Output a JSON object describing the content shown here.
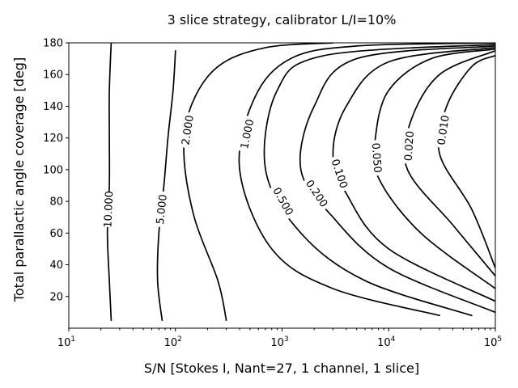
{
  "chart_data": {
    "type": "contour",
    "title": "3 slice strategy, calibrator L/I=10%",
    "xlabel": "S/N [Stokes I, Nant=27, 1 channel, 1 slice]",
    "ylabel": "Total parallactic angle coverage [deg]",
    "xscale": "log",
    "xlim": [
      10,
      100000
    ],
    "ylim": [
      0,
      180
    ],
    "grid": false,
    "legend": "none",
    "x_ticks": [
      {
        "value": 10,
        "base": "10",
        "exp": "1"
      },
      {
        "value": 100,
        "base": "10",
        "exp": "2"
      },
      {
        "value": 1000,
        "base": "10",
        "exp": "3"
      },
      {
        "value": 10000,
        "base": "10",
        "exp": "4"
      },
      {
        "value": 100000,
        "base": "10",
        "exp": "5"
      }
    ],
    "y_ticks": [
      20,
      40,
      60,
      80,
      100,
      120,
      140,
      160,
      180
    ],
    "levels": [
      {
        "label": "10.000",
        "points": [
          [
            25,
            5
          ],
          [
            24,
            30
          ],
          [
            23,
            60
          ],
          [
            24,
            90
          ],
          [
            24,
            120
          ],
          [
            24,
            150
          ],
          [
            25,
            180
          ]
        ]
      },
      {
        "label": "5.000",
        "points": [
          [
            75,
            5
          ],
          [
            68,
            30
          ],
          [
            70,
            60
          ],
          [
            78,
            90
          ],
          [
            85,
            120
          ],
          [
            95,
            150
          ],
          [
            100,
            175
          ]
        ]
      },
      {
        "label": "2.000",
        "points": [
          [
            300,
            5
          ],
          [
            250,
            30
          ],
          [
            150,
            70
          ],
          [
            120,
            110
          ],
          [
            140,
            140
          ],
          [
            250,
            165
          ],
          [
            700,
            177
          ],
          [
            3000,
            180
          ]
        ]
      },
      {
        "label": "1.000",
        "points": [
          [
            30000,
            8
          ],
          [
            3000,
            25
          ],
          [
            800,
            50
          ],
          [
            400,
            100
          ],
          [
            550,
            145
          ],
          [
            1200,
            170
          ],
          [
            5000,
            178
          ],
          [
            100000,
            180
          ]
        ]
      },
      {
        "label": "0.500",
        "points": [
          [
            60000,
            8
          ],
          [
            6000,
            30
          ],
          [
            1500,
            60
          ],
          [
            700,
            100
          ],
          [
            900,
            150
          ],
          [
            2500,
            172
          ],
          [
            100000,
            179
          ]
        ]
      },
      {
        "label": "0.200",
        "points": [
          [
            100000,
            10
          ],
          [
            10000,
            38
          ],
          [
            3000,
            70
          ],
          [
            1500,
            100
          ],
          [
            2000,
            140
          ],
          [
            5000,
            170
          ],
          [
            100000,
            178
          ]
        ]
      },
      {
        "label": "0.100",
        "points": [
          [
            100000,
            17
          ],
          [
            10000,
            50
          ],
          [
            4000,
            85
          ],
          [
            3000,
            110
          ],
          [
            4000,
            140
          ],
          [
            10000,
            168
          ],
          [
            100000,
            177
          ]
        ]
      },
      {
        "label": "0.050",
        "points": [
          [
            100000,
            25
          ],
          [
            20000,
            60
          ],
          [
            8000,
            95
          ],
          [
            7500,
            120
          ],
          [
            10000,
            150
          ],
          [
            25000,
            170
          ],
          [
            100000,
            176
          ]
        ]
      },
      {
        "label": "0.020",
        "points": [
          [
            100000,
            33
          ],
          [
            40000,
            65
          ],
          [
            15000,
            100
          ],
          [
            16000,
            130
          ],
          [
            30000,
            160
          ],
          [
            100000,
            175
          ]
        ]
      },
      {
        "label": "0.010",
        "points": [
          [
            100000,
            38
          ],
          [
            60000,
            75
          ],
          [
            30000,
            110
          ],
          [
            35000,
            140
          ],
          [
            60000,
            165
          ],
          [
            100000,
            172
          ]
        ]
      }
    ]
  }
}
